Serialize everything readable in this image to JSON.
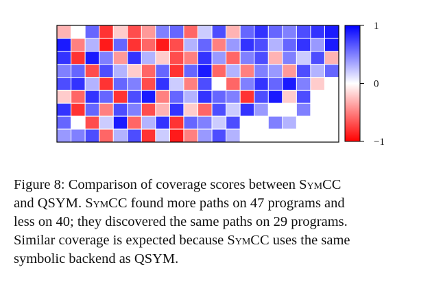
{
  "chart_data": {
    "type": "heatmap",
    "rows": 9,
    "cols": 20,
    "color_scale": {
      "min": -1,
      "max": 1,
      "min_color": "#ff0000",
      "mid_color": "#ffffff",
      "max_color": "#0000ff"
    },
    "colorbar_ticks": [
      {
        "value": 1,
        "label": "1"
      },
      {
        "value": 0,
        "label": "0"
      },
      {
        "value": -1,
        "label": "−1"
      }
    ],
    "grid": true,
    "values": [
      [
        -0.3,
        0.0,
        0.6,
        -0.8,
        -0.2,
        -0.7,
        -0.4,
        0.5,
        0.6,
        -0.6,
        0.2,
        0.7,
        -0.3,
        0.6,
        0.8,
        0.6,
        0.5,
        0.7,
        0.8,
        0.9
      ],
      [
        0.9,
        -0.5,
        0.3,
        -0.9,
        0.6,
        -0.8,
        -0.6,
        -0.9,
        -0.7,
        0.3,
        0.6,
        -0.5,
        0.4,
        0.8,
        0.7,
        0.3,
        0.6,
        0.8,
        0.4,
        0.9
      ],
      [
        0.8,
        -0.8,
        0.9,
        0.5,
        -0.4,
        0.8,
        0.3,
        -0.2,
        -0.7,
        -0.5,
        0.8,
        0.4,
        -0.6,
        0.5,
        0.7,
        -0.3,
        0.5,
        0.2,
        0.7,
        -0.3
      ],
      [
        0.5,
        0.6,
        -0.7,
        0.7,
        0.3,
        -0.2,
        -0.6,
        0.6,
        -0.8,
        0.6,
        0.9,
        -0.6,
        0.3,
        -0.5,
        0.5,
        0.4,
        -0.4,
        0.7,
        0.3,
        0.6
      ],
      [
        0.7,
        0.8,
        0.3,
        -0.8,
        0.6,
        0.5,
        -0.7,
        0.8,
        0.2,
        -0.5,
        0.7,
        0.0,
        -0.6,
        0.5,
        0.8,
        0.6,
        0.9,
        0.5,
        -0.2,
        0.0
      ],
      [
        -0.2,
        -0.6,
        0.8,
        0.6,
        -0.8,
        0.7,
        0.9,
        -0.5,
        0.6,
        0.3,
        0.8,
        0.6,
        0.5,
        -0.8,
        0.7,
        0.9,
        -0.2,
        0.7,
        0.0,
        0.0
      ],
      [
        0.8,
        -0.8,
        0.6,
        -0.5,
        0.7,
        0.5,
        -0.7,
        -0.3,
        0.8,
        -0.2,
        -0.6,
        0.7,
        0.2,
        0.8,
        0.4,
        0.0,
        0.0,
        0.5,
        0.0,
        0.0
      ],
      [
        0.6,
        0.0,
        -0.7,
        0.2,
        0.9,
        -0.6,
        0.3,
        0.8,
        -0.8,
        0.6,
        0.5,
        0.2,
        0.7,
        0.0,
        0.0,
        0.5,
        0.3,
        0.0,
        0.0,
        0.0
      ],
      [
        0.4,
        0.5,
        0.7,
        -0.6,
        0.3,
        0.7,
        -0.8,
        0.2,
        -0.9,
        -0.5,
        0.4,
        0.7,
        0.3,
        0.0,
        0.0,
        0.0,
        0.0,
        0.0,
        0.0,
        0.0
      ]
    ]
  },
  "caption": {
    "lines": [
      [
        {
          "text": "Figure 8: Comparison of coverage scores between "
        },
        {
          "text": "SymCC",
          "smallcaps": true
        }
      ],
      [
        {
          "text": "and QSYM. "
        },
        {
          "text": "SymCC",
          "smallcaps": true
        },
        {
          "text": " found more paths on 47 programs and"
        }
      ],
      [
        {
          "text": "less on 40; they discovered the same paths on 29 programs."
        }
      ],
      [
        {
          "text": "Similar coverage is expected because "
        },
        {
          "text": "SymCC",
          "smallcaps": true
        },
        {
          "text": " uses the same"
        }
      ],
      [
        {
          "text": "symbolic backend as QSYM."
        }
      ]
    ]
  }
}
